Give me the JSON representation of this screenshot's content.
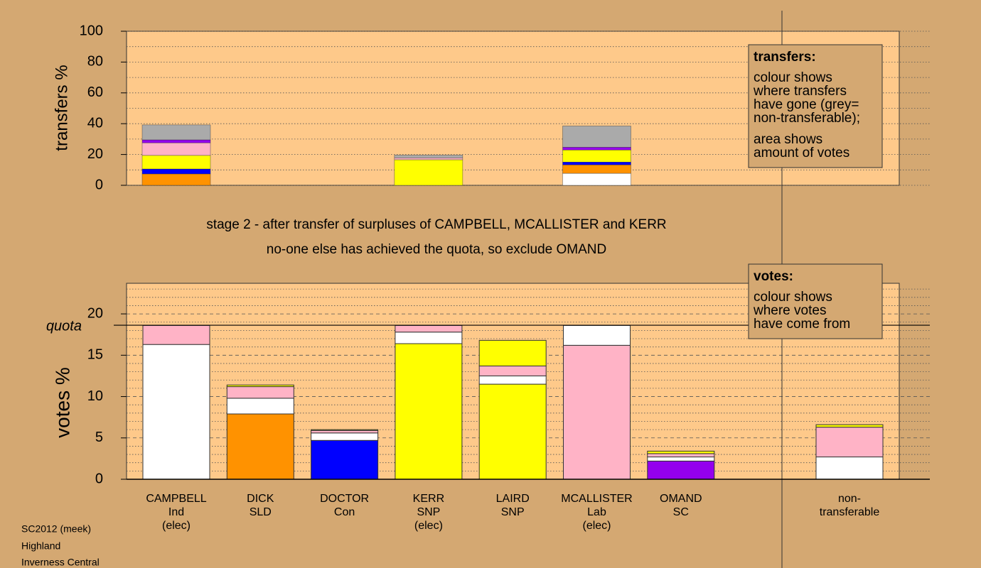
{
  "chart_data": [
    {
      "type": "bar",
      "stacked": true,
      "ylabel": "transfers %",
      "ylim": [
        0,
        100
      ],
      "yticks": [
        0,
        20,
        40,
        60,
        80,
        100
      ],
      "minor_yticks": [
        10,
        30,
        50,
        70,
        90
      ],
      "series": [
        {
          "color": "#ffffff",
          "values": [
            0,
            null,
            null,
            null,
            null,
            7.8,
            null,
            null
          ]
        },
        {
          "color": "#ff9200",
          "values": [
            7.4,
            null,
            null,
            null,
            null,
            5.5,
            null,
            null
          ]
        },
        {
          "color": "#0000ff",
          "values": [
            3.2,
            null,
            null,
            null,
            null,
            1.8,
            null,
            null
          ]
        },
        {
          "color": "#ffff00",
          "values": [
            8.8,
            null,
            null,
            16.6,
            null,
            7.8,
            null,
            null
          ]
        },
        {
          "color": "#ffb3c6",
          "values": [
            8.2,
            null,
            null,
            1.2,
            null,
            0,
            null,
            null
          ]
        },
        {
          "color": "#9400ee",
          "values": [
            1.9,
            null,
            null,
            0,
            null,
            1.8,
            null,
            null
          ]
        },
        {
          "color": "#aaaaaa",
          "values": [
            9.7,
            null,
            null,
            1.8,
            null,
            13.8,
            null,
            null
          ]
        }
      ],
      "note_title": "transfers:",
      "note_lines": [
        "colour shows",
        "where transfers",
        "have gone (grey=",
        "non-transferable);"
      ],
      "note_lines2": [
        "area shows",
        "amount of votes"
      ]
    },
    {
      "type": "bar",
      "stacked": true,
      "ylabel": "votes %",
      "subtitle": [
        "stage 2 - after transfer of surpluses of CAMPBELL, MCALLISTER and KERR",
        "no-one else has achieved the quota, so exclude OMAND"
      ],
      "categories": [
        [
          "CAMPBELL",
          "Ind",
          "(elec)"
        ],
        [
          "DICK",
          "SLD"
        ],
        [
          "DOCTOR",
          "Con"
        ],
        [
          "KERR",
          "SNP",
          "(elec)"
        ],
        [
          "LAIRD",
          "SNP"
        ],
        [
          "MCALLISTER",
          "Lab",
          "(elec)"
        ],
        [
          "OMAND",
          "SC"
        ],
        [
          "non-",
          "transferable"
        ]
      ],
      "ylim": [
        0,
        23.7
      ],
      "yticks": [
        0,
        5,
        10,
        15,
        20
      ],
      "minor_yticks": [
        1,
        2,
        3,
        4,
        6,
        7,
        8,
        9,
        11,
        12,
        13,
        14,
        16,
        17,
        18,
        19,
        21,
        22,
        23
      ],
      "quota": {
        "value": 18.63,
        "label": "quota"
      },
      "series": [
        {
          "colors": [
            "#ffffff",
            "#ff9200",
            "#0000ff",
            "#ffff00",
            "#ffff00",
            "#ffb3c6",
            "#9400ee",
            "#aaaaaa"
          ],
          "values": [
            16.3,
            7.9,
            4.7,
            16.4,
            11.5,
            16.2,
            2.2,
            null
          ]
        },
        {
          "color": "#ffffff",
          "values": [
            0,
            1.9,
            0.9,
            1.4,
            1.0,
            2.4,
            0.5,
            2.7
          ]
        },
        {
          "color": "#ffb3c6",
          "values": [
            2.3,
            1.4,
            0.3,
            0.8,
            1.2,
            0,
            0.4,
            3.6
          ]
        },
        {
          "color": "#ffff00",
          "values": [
            0,
            0.2,
            0.1,
            0,
            3.1,
            0,
            0.3,
            0.3
          ]
        }
      ],
      "note_title": "votes:",
      "note_lines": [
        "colour shows",
        "where votes",
        "have come from"
      ]
    }
  ],
  "footer": [
    "SC2012 (meek)",
    "Highland",
    "Inverness Central"
  ]
}
